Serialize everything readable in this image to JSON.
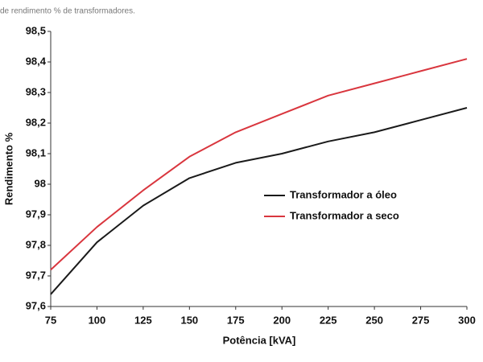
{
  "chart_data": {
    "type": "line",
    "title": "de rendimento % de transformadores.",
    "xlabel": "Potência [kVA]",
    "ylabel": "Rendimento %",
    "x": [
      75,
      100,
      125,
      150,
      175,
      200,
      225,
      250,
      275,
      300
    ],
    "series": [
      {
        "name": "Transformador a óleo",
        "color": "#1a1a1a",
        "values": [
          97.64,
          97.81,
          97.93,
          98.02,
          98.07,
          98.1,
          98.14,
          98.17,
          98.21,
          98.25
        ]
      },
      {
        "name": "Transformador a seco",
        "color": "#d9363e",
        "values": [
          97.72,
          97.86,
          97.98,
          98.09,
          98.17,
          98.23,
          98.29,
          98.33,
          98.37,
          98.41
        ]
      }
    ],
    "xlim": [
      75,
      300
    ],
    "xticks": [
      75,
      100,
      125,
      150,
      175,
      200,
      225,
      250,
      275,
      300
    ],
    "ylim": [
      97.6,
      98.5
    ],
    "yticks": [
      {
        "value": 97.6,
        "label": "97,6"
      },
      {
        "value": 97.7,
        "label": "97,7"
      },
      {
        "value": 97.8,
        "label": "97,8"
      },
      {
        "value": 97.9,
        "label": "97,9"
      },
      98,
      {
        "value": 98.1,
        "label": "98,1"
      },
      {
        "value": 98.2,
        "label": "98,2"
      },
      {
        "value": 98.3,
        "label": "98,3"
      },
      {
        "value": 98.4,
        "label": "98,4"
      },
      {
        "value": 98.5,
        "label": "98,5"
      }
    ],
    "grid": false,
    "legend": "center-right"
  }
}
